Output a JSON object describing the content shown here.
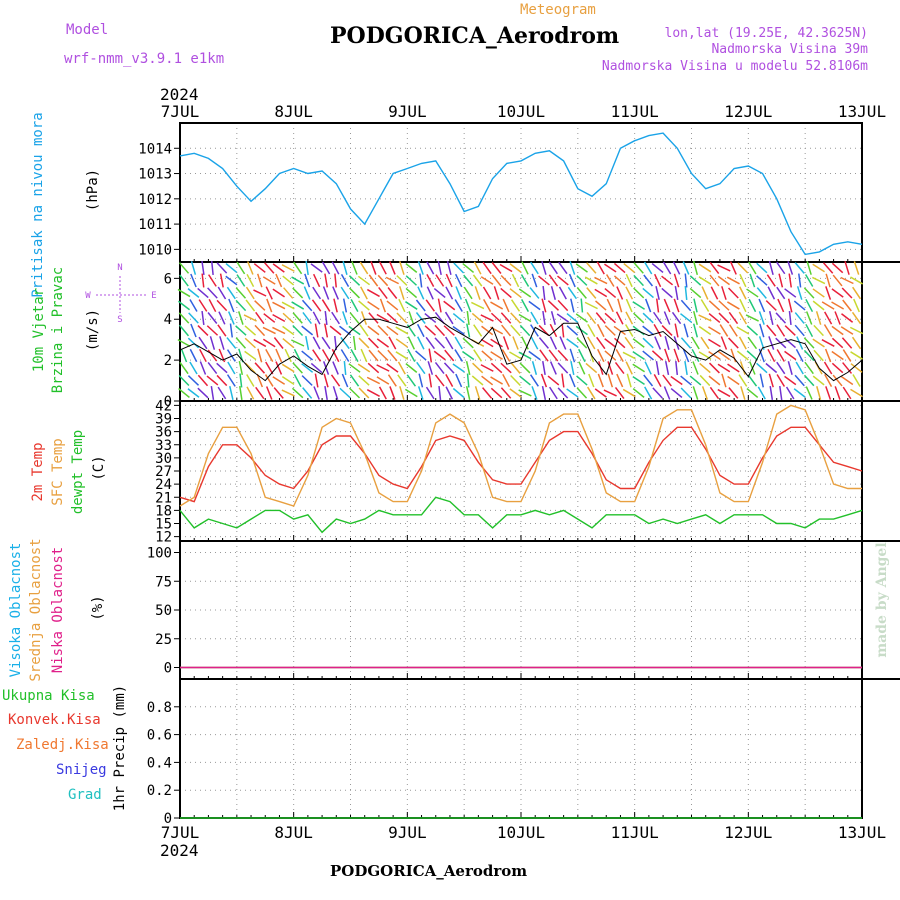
{
  "header": {
    "model_label": "Model",
    "model_name": "wrf-nmm_v3.9.1 e1km",
    "product": "Meteogram",
    "station": "PODGORICA_Aerodrom",
    "coords": "lon,lat (19.25E, 42.3625N)",
    "elevation": "Nadmorska Visina 39m",
    "model_elevation": "Nadmorska Visina u modelu 52.8106m",
    "footer_station": "PODGORICA_Aerodrom",
    "watermark": "made by Angel"
  },
  "colors": {
    "pressure": "#1aa3e8",
    "wind_speed": "#000000",
    "temp_2m": "#e8382e",
    "temp_sfc": "#e8a040",
    "dewpoint": "#22c02a",
    "cloud_high": "#1ab0e8",
    "cloud_mid": "#e8a040",
    "cloud_low": "#e0208a",
    "precip_total": "#22c02a",
    "precip_conv": "#e8382e",
    "precip_frz": "#f07830",
    "snow": "#3a3ae0",
    "hail": "#20c0c0",
    "compass": "#b050e0",
    "axis_label": "#000000"
  },
  "time_axis": {
    "year": "2024",
    "ticks": [
      "7JUL",
      "8JUL",
      "9JUL",
      "10JUL",
      "11JUL",
      "12JUL",
      "13JUL"
    ]
  },
  "panels": {
    "pressure": {
      "label": "Pritisak na nivou mora",
      "unit": "(hPa)"
    },
    "wind": {
      "label1": "10m Vjetar",
      "label2": "Brzina i Pravac",
      "unit": "(m/s)",
      "compass": {
        "n": "N",
        "s": "S",
        "e": "E",
        "w": "W"
      }
    },
    "temp": {
      "label1": "2m Temp",
      "label2": "SFC Temp",
      "label3": "dewpt Temp",
      "unit": "(C)"
    },
    "cloud": {
      "label1": "Visoka Oblacnost",
      "label2": "Srednja Oblacnost",
      "label3": "Niska Oblacnost",
      "unit": "(%)"
    },
    "precip": {
      "label1": "Ukupna Kisa",
      "label2": "Konvek.Kisa",
      "label3": "Zaledj.Kisa",
      "label4": "Snijeg",
      "label5": "Grad",
      "unit": "1hr Precip (mm)"
    }
  },
  "chart_data": [
    {
      "type": "line",
      "ylabel": "(hPa)",
      "ylim": [
        1009.5,
        1015.0
      ],
      "yticks": [
        1010,
        1011,
        1012,
        1013,
        1014
      ],
      "grid": true,
      "series": [
        {
          "name": "Pritisak na nivou mora",
          "x": [
            0,
            3,
            6,
            9,
            12,
            15,
            18,
            21,
            24,
            27,
            30,
            33,
            36,
            39,
            42,
            45,
            48,
            51,
            54,
            57,
            60,
            63,
            66,
            69,
            72,
            75,
            78,
            81,
            84,
            87,
            90,
            93,
            96,
            99,
            102,
            105,
            108,
            111,
            114,
            117,
            120,
            123,
            126,
            129,
            132,
            135,
            138,
            141,
            144
          ],
          "values": [
            1013.7,
            1013.8,
            1013.6,
            1013.2,
            1012.5,
            1011.9,
            1012.4,
            1013.0,
            1013.2,
            1013.0,
            1013.1,
            1012.6,
            1011.6,
            1011.0,
            1012.0,
            1013.0,
            1013.2,
            1013.4,
            1013.5,
            1012.6,
            1011.5,
            1011.7,
            1012.8,
            1013.4,
            1013.5,
            1013.8,
            1013.9,
            1013.5,
            1012.4,
            1012.1,
            1012.6,
            1014.0,
            1014.3,
            1014.5,
            1014.6,
            1014.0,
            1013.0,
            1012.4,
            1012.6,
            1013.2,
            1013.3,
            1013.0,
            1012.0,
            1010.7,
            1009.8,
            1009.9,
            1010.2,
            1010.3,
            1010.2
          ]
        }
      ]
    },
    {
      "type": "line",
      "ylabel": "(m/s)",
      "ylim": [
        0,
        6.8
      ],
      "yticks": [
        0,
        2,
        4,
        6
      ],
      "grid": true,
      "series": [
        {
          "name": "10m Vjetar Brzina",
          "x": [
            0,
            3,
            6,
            9,
            12,
            15,
            18,
            21,
            24,
            27,
            30,
            33,
            36,
            39,
            42,
            45,
            48,
            51,
            54,
            57,
            60,
            63,
            66,
            69,
            72,
            75,
            78,
            81,
            84,
            87,
            90,
            93,
            96,
            99,
            102,
            105,
            108,
            111,
            114,
            117,
            120,
            123,
            126,
            129,
            132,
            135,
            138,
            141,
            144
          ],
          "values": [
            2.5,
            2.8,
            2.4,
            2.0,
            2.3,
            1.5,
            1.0,
            1.8,
            2.2,
            1.7,
            1.3,
            2.6,
            3.4,
            4.0,
            4.0,
            3.8,
            3.6,
            4.0,
            4.1,
            3.6,
            3.2,
            2.8,
            3.6,
            1.8,
            2.0,
            3.6,
            3.2,
            3.8,
            3.8,
            2.2,
            1.3,
            3.4,
            3.5,
            3.2,
            3.4,
            2.8,
            2.2,
            2.0,
            2.5,
            2.1,
            1.2,
            2.6,
            2.8,
            3.0,
            2.8,
            1.6,
            1.0,
            1.4,
            2.0
          ]
        }
      ]
    },
    {
      "type": "line",
      "ylabel": "(C)",
      "ylim": [
        11,
        43
      ],
      "yticks": [
        12,
        15,
        18,
        21,
        24,
        27,
        30,
        33,
        36,
        39,
        42
      ],
      "grid": true,
      "series": [
        {
          "name": "2m Temp",
          "x": [
            0,
            3,
            6,
            9,
            12,
            15,
            18,
            21,
            24,
            27,
            30,
            33,
            36,
            39,
            42,
            45,
            48,
            51,
            54,
            57,
            60,
            63,
            66,
            69,
            72,
            75,
            78,
            81,
            84,
            87,
            90,
            93,
            96,
            99,
            102,
            105,
            108,
            111,
            114,
            117,
            120,
            123,
            126,
            129,
            132,
            135,
            138,
            141,
            144
          ],
          "values": [
            21,
            20,
            28,
            33,
            33,
            30,
            26,
            24,
            23,
            27,
            33,
            35,
            35,
            31,
            26,
            24,
            23,
            28,
            34,
            35,
            34,
            29,
            25,
            24,
            24,
            29,
            34,
            36,
            36,
            31,
            25,
            23,
            23,
            29,
            34,
            37,
            37,
            32,
            26,
            24,
            24,
            30,
            35,
            37,
            37,
            33,
            29,
            28,
            27
          ]
        },
        {
          "name": "SFC Temp",
          "x": [
            0,
            3,
            6,
            9,
            12,
            15,
            18,
            21,
            24,
            27,
            30,
            33,
            36,
            39,
            42,
            45,
            48,
            51,
            54,
            57,
            60,
            63,
            66,
            69,
            72,
            75,
            78,
            81,
            84,
            87,
            90,
            93,
            96,
            99,
            102,
            105,
            108,
            111,
            114,
            117,
            120,
            123,
            126,
            129,
            132,
            135,
            138,
            141,
            144
          ],
          "values": [
            19,
            21,
            31,
            37,
            37,
            31,
            21,
            20,
            19,
            26,
            37,
            39,
            38,
            31,
            22,
            20,
            20,
            27,
            38,
            40,
            38,
            31,
            21,
            20,
            20,
            27,
            38,
            40,
            40,
            32,
            22,
            20,
            20,
            28,
            39,
            41,
            41,
            33,
            22,
            20,
            20,
            29,
            40,
            42,
            41,
            33,
            24,
            23,
            23
          ]
        },
        {
          "name": "dewpt Temp",
          "x": [
            0,
            3,
            6,
            9,
            12,
            15,
            18,
            21,
            24,
            27,
            30,
            33,
            36,
            39,
            42,
            45,
            48,
            51,
            54,
            57,
            60,
            63,
            66,
            69,
            72,
            75,
            78,
            81,
            84,
            87,
            90,
            93,
            96,
            99,
            102,
            105,
            108,
            111,
            114,
            117,
            120,
            123,
            126,
            129,
            132,
            135,
            138,
            141,
            144
          ],
          "values": [
            18,
            14,
            16,
            15,
            14,
            16,
            18,
            18,
            16,
            17,
            13,
            16,
            15,
            16,
            18,
            17,
            17,
            17,
            21,
            20,
            17,
            17,
            14,
            17,
            17,
            18,
            17,
            18,
            16,
            14,
            17,
            17,
            17,
            15,
            16,
            15,
            16,
            17,
            15,
            17,
            17,
            17,
            15,
            15,
            14,
            16,
            16,
            17,
            18
          ]
        }
      ]
    },
    {
      "type": "line",
      "ylabel": "(%)",
      "ylim": [
        -10,
        110
      ],
      "yticks": [
        0,
        25,
        50,
        75,
        100
      ],
      "grid": true,
      "series": [
        {
          "name": "Visoka Oblacnost",
          "x": [
            0,
            144
          ],
          "values": [
            0,
            0
          ]
        },
        {
          "name": "Srednja Oblacnost",
          "x": [
            0,
            144
          ],
          "values": [
            0,
            0
          ]
        },
        {
          "name": "Niska Oblacnost",
          "x": [
            0,
            144
          ],
          "values": [
            0,
            0
          ]
        }
      ]
    },
    {
      "type": "bar",
      "ylabel": "1hr Precip (mm)",
      "ylim": [
        0,
        1.0
      ],
      "yticks": [
        0,
        0.2,
        0.4,
        0.6,
        0.8
      ],
      "grid": true,
      "series": [
        {
          "name": "Ukupna Kisa",
          "x": [
            0,
            144
          ],
          "values": [
            0,
            0
          ]
        }
      ]
    }
  ]
}
